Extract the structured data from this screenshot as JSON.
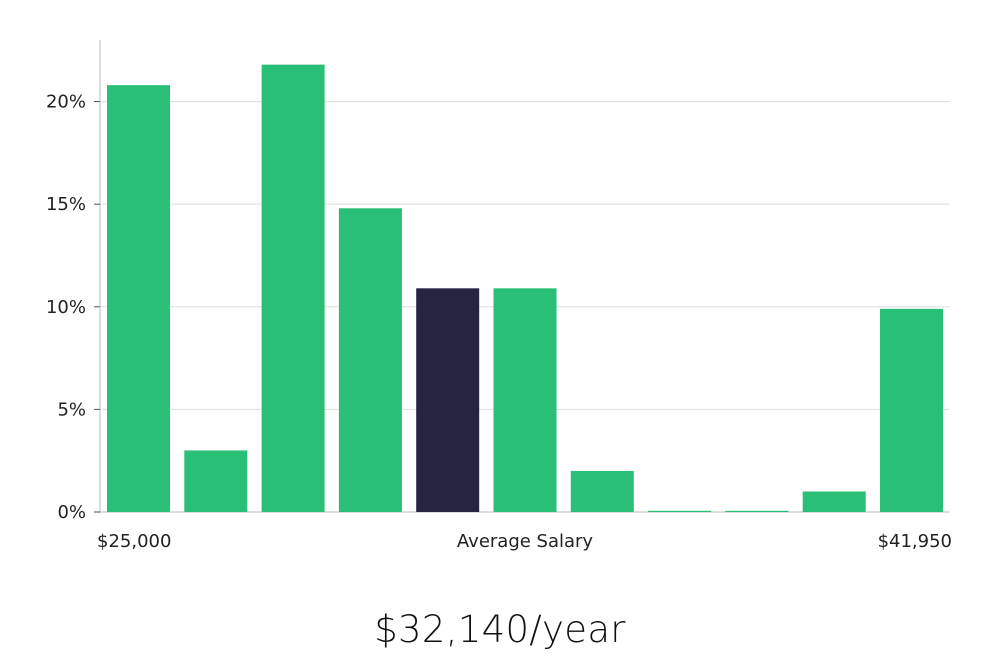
{
  "chart_data": {
    "type": "bar",
    "bins": 11,
    "values": [
      20.8,
      3.0,
      21.8,
      14.8,
      10.9,
      10.9,
      2.0,
      0.05,
      0.05,
      1.0,
      9.9
    ],
    "highlight_index": 4,
    "ylim": [
      0,
      23
    ],
    "yticks": [
      0,
      5,
      10,
      15,
      20
    ],
    "ytick_labels": [
      "0%",
      "5%",
      "10%",
      "15%",
      "20%"
    ],
    "x_labels": {
      "left": "$25,000",
      "middle": "Average Salary",
      "right": "$41,950"
    },
    "grid": true
  },
  "colors": {
    "bar": "#29bf77",
    "highlight": "#272442",
    "grid": "#dddddd",
    "axis": "#bbbbbb"
  },
  "headline": "$32,140/year"
}
